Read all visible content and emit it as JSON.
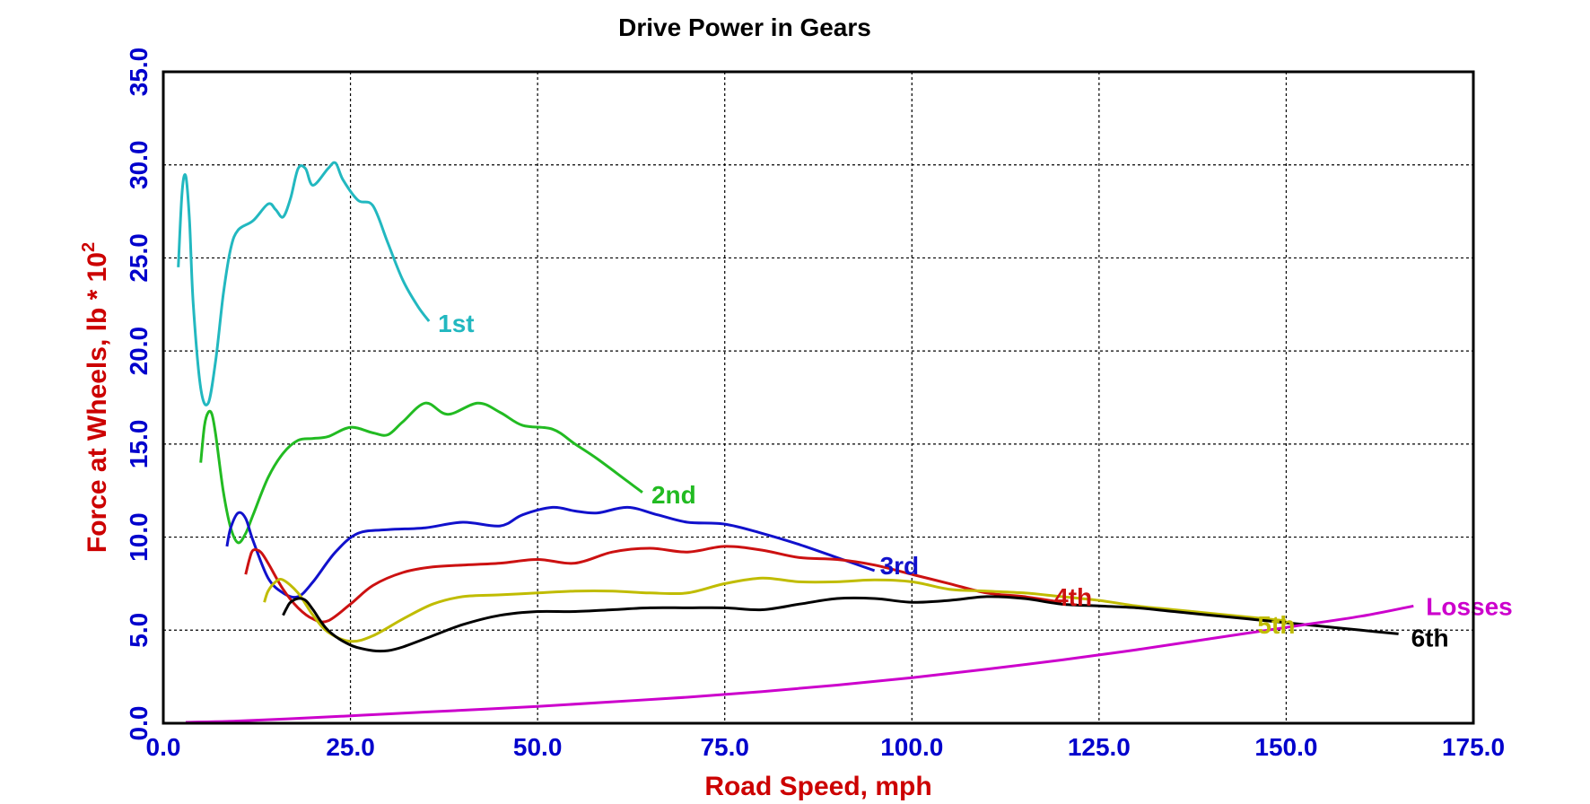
{
  "chart_data": {
    "type": "line",
    "title": "Drive Power in Gears",
    "xlabel": "Road Speed, mph",
    "ylabel": "Force at Wheels, lb * 10",
    "ylabel_sup": "2",
    "xlim": [
      0,
      175
    ],
    "ylim": [
      0,
      35
    ],
    "xticks": [
      "0.0",
      "25.0",
      "50.0",
      "75.0",
      "100.0",
      "125.0",
      "150.0",
      "175.0"
    ],
    "yticks": [
      "0.0",
      "5.0",
      "10.0",
      "15.0",
      "20.0",
      "25.0",
      "30.0",
      "35.0"
    ],
    "grid": true,
    "series": [
      {
        "name": "1st",
        "color": "#22b8c0",
        "x": [
          2,
          2.5,
          3,
          3.5,
          4,
          5,
          6,
          7,
          8,
          9,
          10,
          12,
          14,
          15,
          16,
          17,
          18,
          19,
          20,
          22,
          23,
          24,
          26,
          28,
          30,
          32,
          34,
          35.5
        ],
        "y": [
          24.5,
          28.5,
          29.4,
          27,
          22.5,
          18,
          17.2,
          19.5,
          23,
          25.5,
          26.5,
          27,
          27.9,
          27.6,
          27.2,
          28.2,
          29.8,
          29.8,
          28.9,
          29.8,
          30.1,
          29.2,
          28.1,
          27.8,
          25.8,
          23.8,
          22.4,
          21.6
        ]
      },
      {
        "name": "2nd",
        "color": "#22bb22",
        "x": [
          5,
          5.5,
          6,
          6.5,
          7,
          8,
          9,
          10,
          11,
          12,
          14,
          16,
          18,
          20,
          22,
          25,
          28,
          30,
          32,
          35,
          38,
          42,
          45,
          48,
          52,
          55,
          58,
          62,
          64
        ],
        "y": [
          14,
          16,
          16.7,
          16.6,
          15.5,
          12.5,
          10.5,
          9.7,
          10.2,
          11.2,
          13.2,
          14.5,
          15.2,
          15.3,
          15.4,
          15.9,
          15.6,
          15.5,
          16.2,
          17.2,
          16.6,
          17.2,
          16.7,
          16.0,
          15.8,
          15.0,
          14.2,
          13.0,
          12.4
        ]
      },
      {
        "name": "3rd",
        "color": "#1111cc",
        "x": [
          8.5,
          9,
          10,
          11,
          12,
          14,
          16,
          18,
          20,
          23,
          26,
          30,
          35,
          40,
          45,
          48,
          52,
          55,
          58,
          62,
          66,
          70,
          75,
          80,
          85,
          90,
          95
        ],
        "y": [
          9.5,
          10.5,
          11.3,
          11.0,
          9.8,
          7.8,
          7.0,
          6.8,
          7.6,
          9.2,
          10.2,
          10.4,
          10.5,
          10.8,
          10.6,
          11.2,
          11.6,
          11.4,
          11.3,
          11.6,
          11.2,
          10.8,
          10.7,
          10.2,
          9.6,
          8.9,
          8.2
        ]
      },
      {
        "name": "4th",
        "color": "#cc1111",
        "x": [
          11,
          11.5,
          12,
          13,
          14,
          16,
          18,
          20,
          22,
          25,
          28,
          32,
          36,
          40,
          45,
          50,
          55,
          60,
          65,
          70,
          75,
          80,
          85,
          90,
          95,
          100,
          105,
          110,
          115,
          120
        ],
        "y": [
          8,
          8.8,
          9.3,
          9.2,
          8.6,
          7.2,
          6.2,
          5.6,
          5.5,
          6.4,
          7.4,
          8.1,
          8.4,
          8.5,
          8.6,
          8.8,
          8.6,
          9.2,
          9.4,
          9.2,
          9.5,
          9.3,
          8.9,
          8.8,
          8.5,
          8.0,
          7.5,
          7.0,
          6.8,
          6.5
        ]
      },
      {
        "name": "5th",
        "color": "#c0bc00",
        "x": [
          13.5,
          14,
          15,
          16,
          18,
          20,
          22,
          25,
          28,
          32,
          36,
          40,
          45,
          50,
          55,
          60,
          65,
          70,
          75,
          80,
          85,
          90,
          95,
          100,
          105,
          110,
          115,
          120,
          125,
          130,
          135,
          140,
          145,
          150
        ],
        "y": [
          6.5,
          7.1,
          7.6,
          7.7,
          7.0,
          5.8,
          4.9,
          4.4,
          4.7,
          5.6,
          6.4,
          6.8,
          6.9,
          7.0,
          7.1,
          7.1,
          7.0,
          7.0,
          7.5,
          7.8,
          7.6,
          7.6,
          7.7,
          7.6,
          7.2,
          7.1,
          7.0,
          6.8,
          6.6,
          6.3,
          6.1,
          5.9,
          5.7,
          5.5
        ]
      },
      {
        "name": "6th",
        "color": "#000000",
        "x": [
          16,
          16.5,
          17,
          18,
          19,
          20,
          22,
          25,
          28,
          30,
          32,
          36,
          40,
          45,
          50,
          55,
          60,
          65,
          70,
          75,
          80,
          85,
          90,
          95,
          100,
          105,
          110,
          115,
          120,
          125,
          130,
          135,
          140,
          145,
          150,
          155,
          160,
          165
        ],
        "y": [
          5.8,
          6.2,
          6.5,
          6.7,
          6.6,
          6.1,
          5.0,
          4.2,
          3.9,
          3.9,
          4.1,
          4.7,
          5.3,
          5.8,
          6.0,
          6.0,
          6.1,
          6.2,
          6.2,
          6.2,
          6.1,
          6.4,
          6.7,
          6.7,
          6.5,
          6.6,
          6.8,
          6.7,
          6.4,
          6.3,
          6.2,
          6.0,
          5.8,
          5.6,
          5.4,
          5.2,
          5.0,
          4.8
        ]
      },
      {
        "name": "Losses",
        "color": "#cc00cc",
        "x": [
          3,
          10,
          20,
          30,
          40,
          50,
          60,
          70,
          80,
          90,
          100,
          110,
          120,
          130,
          140,
          150,
          160,
          167
        ],
        "y": [
          0.05,
          0.12,
          0.3,
          0.5,
          0.7,
          0.9,
          1.15,
          1.4,
          1.7,
          2.05,
          2.45,
          2.9,
          3.4,
          3.95,
          4.55,
          5.15,
          5.75,
          6.3
        ]
      }
    ]
  }
}
